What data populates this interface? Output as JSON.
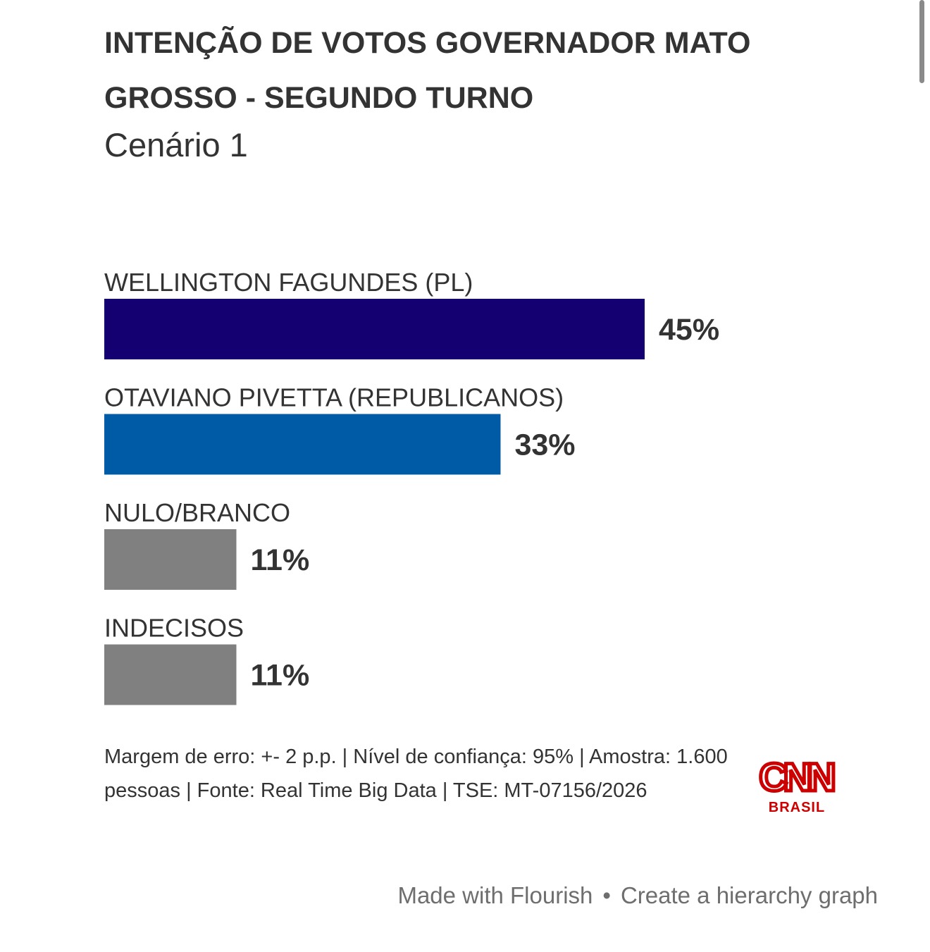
{
  "chart_data": {
    "type": "bar",
    "orientation": "horizontal",
    "title": "INTENÇÃO DE VOTOS GOVERNADOR MATO GROSSO - SEGUNDO TURNO",
    "subtitle": "Cenário 1",
    "categories": [
      "WELLINGTON FAGUNDES (PL)",
      "OTAVIANO PIVETTA (REPUBLICANOS)",
      "NULO/BRANCO",
      "INDECISOS"
    ],
    "values": [
      45,
      33,
      11,
      11
    ],
    "value_labels": [
      "45%",
      "33%",
      "11%",
      "11%"
    ],
    "colors": [
      "#140070",
      "#005ba6",
      "#808080",
      "#808080"
    ],
    "xlim": [
      0,
      45
    ],
    "grid": false,
    "legend": "none"
  },
  "note": {
    "text": "Margem de erro: +- 2 p.p. | Nível de confiança: 95% | Amostra: 1.600 pessoas | Fonte: Real Time Big Data | TSE: MT-07156/2026"
  },
  "logo": {
    "name": "cnn-brasil-logo",
    "main": "CNN",
    "sub": "BRASIL",
    "color": "#cc0000"
  },
  "flourish": {
    "made_with": "Made with Flourish",
    "separator": "•",
    "create": "Create a hierarchy graph"
  }
}
